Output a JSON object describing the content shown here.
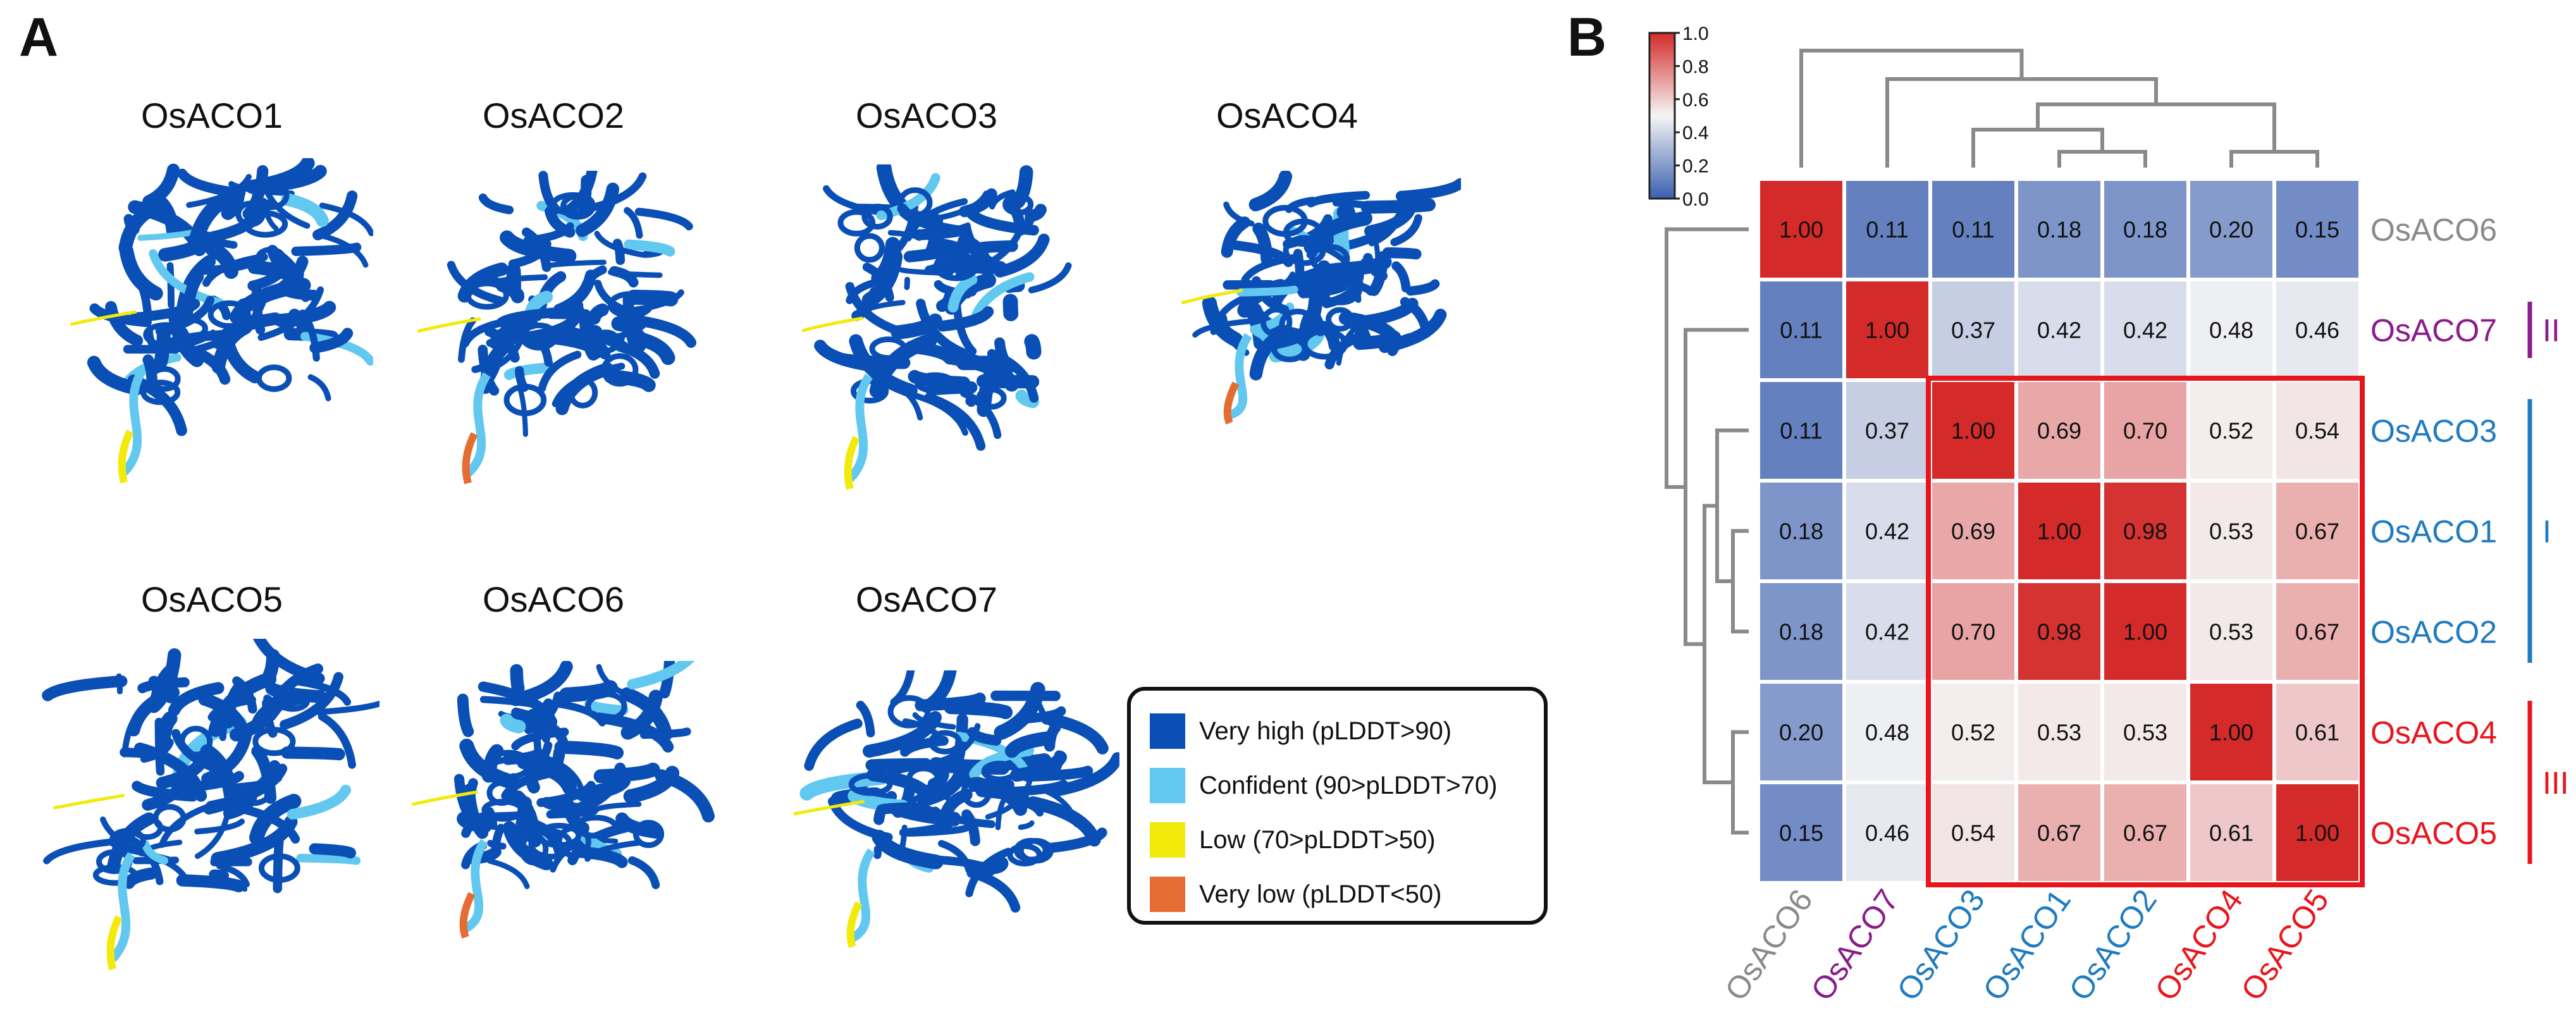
{
  "panel_a": {
    "letter": "A",
    "proteins": [
      "OsACO1",
      "OsACO2",
      "OsACO3",
      "OsACO4",
      "OsACO5",
      "OsACO6",
      "OsACO7"
    ],
    "legend": [
      {
        "label": "Very high (pLDDT>90)",
        "color": "#0a4fb5"
      },
      {
        "label": "Confident (90>pLDDT>70)",
        "color": "#62c8f0"
      },
      {
        "label": "Low (70>pLDDT>50)",
        "color": "#f2ea0b"
      },
      {
        "label": "Very low (pLDDT<50)",
        "color": "#e56d33"
      }
    ],
    "structure_colors": {
      "very_high": "#0a4fb5",
      "confident": "#62c8f0",
      "low": "#f2ea0b",
      "very_low": "#e56d33"
    }
  },
  "panel_b": {
    "letter": "B",
    "groups": [
      {
        "label": "II",
        "color": "#8b1a8b"
      },
      {
        "label": "I",
        "color": "#1f7bbf"
      },
      {
        "label": "III",
        "color": "#e8161c"
      }
    ]
  },
  "chart_data": {
    "type": "heatmap",
    "rows": [
      "OsACO6",
      "OsACO7",
      "OsACO3",
      "OsACO1",
      "OsACO2",
      "OsACO4",
      "OsACO5"
    ],
    "columns": [
      "OsACO6",
      "OsACO7",
      "OsACO3",
      "OsACO1",
      "OsACO2",
      "OsACO4",
      "OsACO5"
    ],
    "label_colors": [
      "#8a8a8a",
      "#8b1a8b",
      "#1f7bbf",
      "#1f7bbf",
      "#1f7bbf",
      "#e8161c",
      "#e8161c"
    ],
    "values": [
      [
        1.0,
        0.11,
        0.11,
        0.18,
        0.18,
        0.2,
        0.15
      ],
      [
        0.11,
        1.0,
        0.37,
        0.42,
        0.42,
        0.48,
        0.46
      ],
      [
        0.11,
        0.37,
        1.0,
        0.69,
        0.7,
        0.52,
        0.54
      ],
      [
        0.18,
        0.42,
        0.69,
        1.0,
        0.98,
        0.53,
        0.67
      ],
      [
        0.18,
        0.42,
        0.7,
        0.98,
        1.0,
        0.53,
        0.67
      ],
      [
        0.2,
        0.48,
        0.52,
        0.53,
        0.53,
        1.0,
        0.61
      ],
      [
        0.15,
        0.46,
        0.54,
        0.67,
        0.67,
        0.61,
        1.0
      ]
    ],
    "value_labels": [
      [
        "1.00",
        "0.11",
        "0.11",
        "0.18",
        "0.18",
        "0.20",
        "0.15"
      ],
      [
        "0.11",
        "1.00",
        "0.37",
        "0.42",
        "0.42",
        "0.48",
        "0.46"
      ],
      [
        "0.11",
        "0.37",
        "1.00",
        "0.69",
        "0.70",
        "0.52",
        "0.54"
      ],
      [
        "0.18",
        "0.42",
        "0.69",
        "1.00",
        "0.98",
        "0.53",
        "0.67"
      ],
      [
        "0.18",
        "0.42",
        "0.70",
        "0.98",
        "1.00",
        "0.53",
        "0.67"
      ],
      [
        "0.20",
        "0.48",
        "0.52",
        "0.53",
        "0.53",
        "1.00",
        "0.61"
      ],
      [
        "0.15",
        "0.46",
        "0.54",
        "0.67",
        "0.67",
        "0.61",
        "1.00"
      ]
    ],
    "colorbar": {
      "min": 0.0,
      "max": 1.0,
      "ticks": [
        "1.0",
        "0.8",
        "0.6",
        "0.4",
        "0.2",
        "0.0"
      ],
      "low_color": "#3b5fb0",
      "mid_color": "#f5f5f5",
      "high_color": "#d42a2a"
    },
    "highlight_color": "#e8161c"
  }
}
